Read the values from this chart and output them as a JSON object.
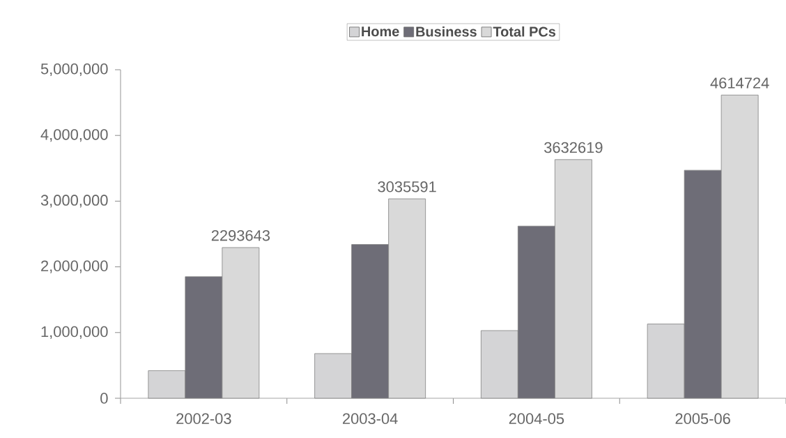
{
  "chart_data": {
    "type": "bar",
    "categories": [
      "2002-03",
      "2003-04",
      "2004-05",
      "2005-06"
    ],
    "series": [
      {
        "name": "Home",
        "color": "#d4d4d6",
        "values": [
          420000,
          680000,
          1030000,
          1130000
        ]
      },
      {
        "name": "Business",
        "color": "#6e6d77",
        "values": [
          1850000,
          2340000,
          2620000,
          3470000
        ]
      },
      {
        "name": "Total PCs",
        "color": "#d9d9d9",
        "values": [
          2293643,
          3035591,
          3632619,
          4614724
        ],
        "value_labels": [
          "2293643",
          "3035591",
          "3632619",
          "4614724"
        ]
      }
    ],
    "ylim": [
      0,
      5000000
    ],
    "yticks": [
      0,
      {
        "value": 1000000,
        "label": "1,000,000"
      },
      {
        "value": 2000000,
        "label": "2,000,000"
      },
      {
        "value": 3000000,
        "label": "3,000,000"
      },
      {
        "value": 4000000,
        "label": "4,000,000"
      },
      {
        "value": 5000000,
        "label": "5,000,000"
      }
    ],
    "grid": false,
    "legend": "top"
  }
}
